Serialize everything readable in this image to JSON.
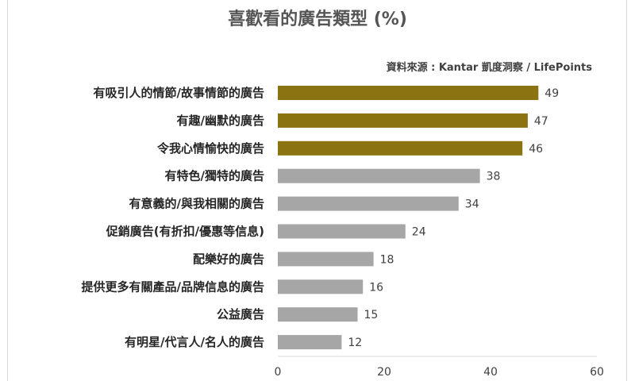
{
  "chart_data": {
    "type": "bar",
    "orientation": "horizontal",
    "title": "喜歡看的廣告類型 (%)",
    "source": "資料來源 : Kantar 凱度洞察 / LifePoints",
    "categories": [
      "有吸引人的情節/故事情節的廣告",
      "有趣/幽默的廣告",
      "令我心情愉快的廣告",
      "有特色/獨特的廣告",
      "有意義的/與我相關的廣告",
      "促銷廣告(有折扣/優惠等信息)",
      "配樂好的廣告",
      "提供更多有關產品/品牌信息的廣告",
      "公益廣告",
      "有明星/代言人/名人的廣告"
    ],
    "values": [
      49,
      47,
      46,
      38,
      34,
      24,
      18,
      16,
      15,
      12
    ],
    "highlight_top": 3,
    "colors": {
      "highlight": "#8a7310",
      "normal": "#a6a6a6"
    },
    "xlim": [
      0,
      60
    ],
    "xticks": [
      0,
      20,
      40,
      60
    ],
    "grid": false,
    "legend": "none"
  }
}
